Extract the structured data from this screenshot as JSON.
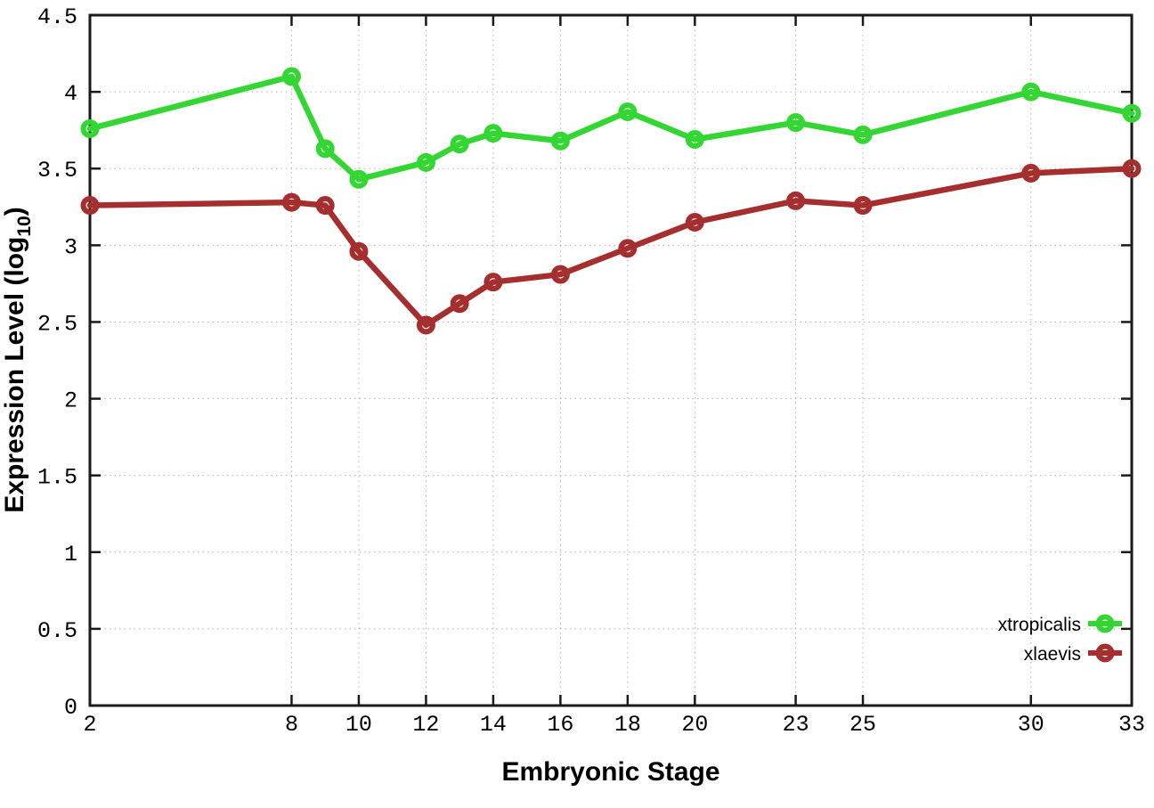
{
  "chart_data": {
    "type": "line",
    "title": "",
    "xlabel": "Embryonic Stage",
    "ylabel": "Expression Level (log10)",
    "ylabel_parts": {
      "main": "Expression Level (log",
      "sub": "10",
      "end": ")"
    },
    "x": [
      2,
      8,
      9,
      10,
      12,
      13,
      14,
      16,
      18,
      20,
      23,
      25,
      30,
      33
    ],
    "xlim": [
      2,
      33
    ],
    "ylim": [
      0,
      4.5
    ],
    "x_tick_values": [
      2,
      8,
      10,
      12,
      14,
      16,
      18,
      20,
      23,
      25,
      30,
      33
    ],
    "x_tick_labels": [
      "2",
      "8",
      "10",
      "12",
      "14",
      "16",
      "18",
      "20",
      "23",
      "25",
      "30",
      "33"
    ],
    "y_tick_values": [
      0,
      0.5,
      1,
      1.5,
      2,
      2.5,
      3,
      3.5,
      4,
      4.5
    ],
    "y_tick_labels": [
      "0",
      "0.5",
      "1",
      "1.5",
      "2",
      "2.5",
      "3",
      "3.5",
      "4",
      "4.5"
    ],
    "grid": true,
    "legend_position": "bottom-right",
    "series": [
      {
        "name": "xtropicalis",
        "color": "#33d633",
        "marker": "open-circle",
        "values": [
          3.76,
          4.1,
          3.63,
          3.43,
          3.54,
          3.66,
          3.73,
          3.68,
          3.87,
          3.69,
          3.8,
          3.72,
          4.0,
          3.86
        ]
      },
      {
        "name": "xlaevis",
        "color": "#a52e2e",
        "marker": "open-circle",
        "values": [
          3.26,
          3.28,
          3.26,
          2.96,
          2.48,
          2.62,
          2.76,
          2.81,
          2.98,
          3.15,
          3.29,
          3.26,
          3.47,
          3.5
        ]
      }
    ]
  }
}
